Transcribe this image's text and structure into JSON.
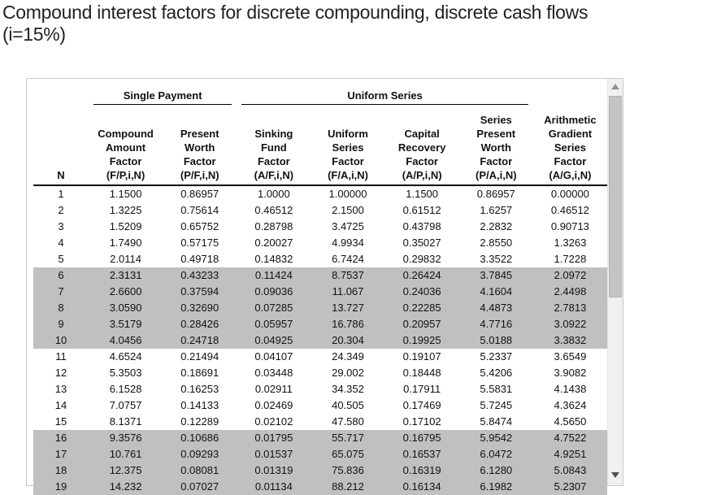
{
  "title": {
    "text": "Compound interest factors for discrete compounding, discrete cash flows\n(i=15%)",
    "interest_rate": "15%"
  },
  "table": {
    "group_headers": [
      {
        "label": "Single Payment",
        "span": 2
      },
      {
        "label": "Uniform Series",
        "span": 4
      }
    ],
    "columns": [
      {
        "label": "N"
      },
      {
        "label": "Compound\nAmount\nFactor\n(F/P,i,N)"
      },
      {
        "label": "Present\nWorth\nFactor\n(P/F,i,N)"
      },
      {
        "label": "Sinking\nFund\nFactor\n(A/F,i,N)"
      },
      {
        "label": "Uniform\nSeries\nFactor\n(F/A,i,N)"
      },
      {
        "label": "Capital\nRecovery\nFactor\n(A/P,i,N)"
      },
      {
        "label": "Series\nPresent\nWorth\nFactor\n(P/A,i,N)"
      },
      {
        "label": "Arithmetic\nGradient\nSeries\nFactor\n(A/G,i,N)"
      }
    ],
    "rows": [
      [
        "1",
        "1.1500",
        "0.86957",
        "1.0000",
        "1.00000",
        "1.1500",
        "0.86957",
        "0.00000"
      ],
      [
        "2",
        "1.3225",
        "0.75614",
        "0.46512",
        "2.1500",
        "0.61512",
        "1.6257",
        "0.46512"
      ],
      [
        "3",
        "1.5209",
        "0.65752",
        "0.28798",
        "3.4725",
        "0.43798",
        "2.2832",
        "0.90713"
      ],
      [
        "4",
        "1.7490",
        "0.57175",
        "0.20027",
        "4.9934",
        "0.35027",
        "2.8550",
        "1.3263"
      ],
      [
        "5",
        "2.0114",
        "0.49718",
        "0.14832",
        "6.7424",
        "0.29832",
        "3.3522",
        "1.7228"
      ],
      [
        "6",
        "2.3131",
        "0.43233",
        "0.11424",
        "8.7537",
        "0.26424",
        "3.7845",
        "2.0972"
      ],
      [
        "7",
        "2.6600",
        "0.37594",
        "0.09036",
        "11.067",
        "0.24036",
        "4.1604",
        "2.4498"
      ],
      [
        "8",
        "3.0590",
        "0.32690",
        "0.07285",
        "13.727",
        "0.22285",
        "4.4873",
        "2.7813"
      ],
      [
        "9",
        "3.5179",
        "0.28426",
        "0.05957",
        "16.786",
        "0.20957",
        "4.7716",
        "3.0922"
      ],
      [
        "10",
        "4.0456",
        "0.24718",
        "0.04925",
        "20.304",
        "0.19925",
        "5.0188",
        "3.3832"
      ],
      [
        "11",
        "4.6524",
        "0.21494",
        "0.04107",
        "24.349",
        "0.19107",
        "5.2337",
        "3.6549"
      ],
      [
        "12",
        "5.3503",
        "0.18691",
        "0.03448",
        "29.002",
        "0.18448",
        "5.4206",
        "3.9082"
      ],
      [
        "13",
        "6.1528",
        "0.16253",
        "0.02911",
        "34.352",
        "0.17911",
        "5.5831",
        "4.1438"
      ],
      [
        "14",
        "7.0757",
        "0.14133",
        "0.02469",
        "40.505",
        "0.17469",
        "5.7245",
        "4.3624"
      ],
      [
        "15",
        "8.1371",
        "0.12289",
        "0.02102",
        "47.580",
        "0.17102",
        "5.8474",
        "4.5650"
      ],
      [
        "16",
        "9.3576",
        "0.10686",
        "0.01795",
        "55.717",
        "0.16795",
        "5.9542",
        "4.7522"
      ],
      [
        "17",
        "10.761",
        "0.09293",
        "0.01537",
        "65.075",
        "0.16537",
        "6.0472",
        "4.9251"
      ],
      [
        "18",
        "12.375",
        "0.08081",
        "0.01319",
        "75.836",
        "0.16319",
        "6.1280",
        "5.0843"
      ],
      [
        "19",
        "14.232",
        "0.07027",
        "0.01134",
        "88.212",
        "0.16134",
        "6.1982",
        "5.2307"
      ]
    ],
    "highlighted_rows": [
      6,
      7,
      8,
      9,
      10,
      16,
      17,
      18,
      19
    ],
    "colors": {
      "highlight_band": "#c0c0c0",
      "text": "#111111",
      "rule": "#000000"
    }
  },
  "scrollbar": {
    "up_icon": "triangle-up",
    "down_icon": "triangle-down",
    "track_color": "#f0f0f0",
    "thumb_color": "#c4c4c4"
  }
}
